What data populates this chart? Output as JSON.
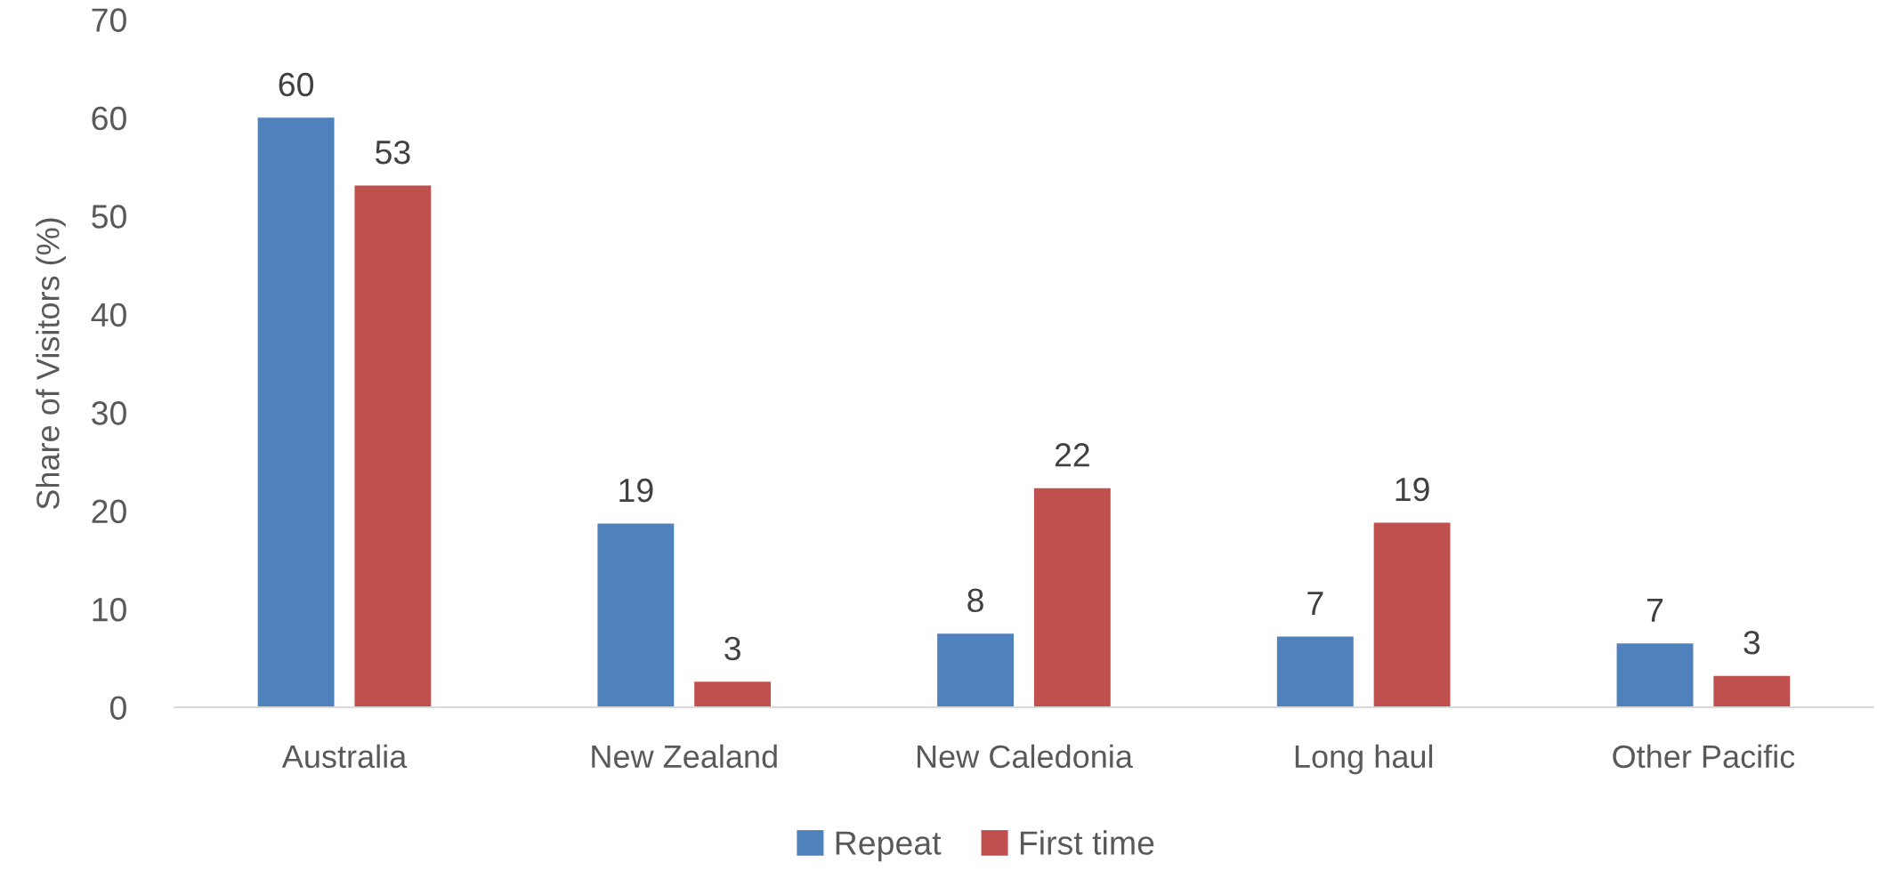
{
  "chart_data": {
    "type": "bar",
    "ylabel": "Share of Visitors (%)",
    "categories": [
      "Australia",
      "New Zealand",
      "New Caledonia",
      "Long haul",
      "Other Pacific"
    ],
    "series": [
      {
        "name": "Repeat",
        "color": "#4f81bd",
        "values": [
          60.0,
          18.7,
          7.5,
          7.2,
          6.5
        ],
        "value_labels": [
          "60",
          "19",
          "8",
          "7",
          "7"
        ]
      },
      {
        "name": "First time",
        "color": "#c0504d",
        "values": [
          53.1,
          2.6,
          22.3,
          18.8,
          3.2
        ],
        "value_labels": [
          "53",
          "3",
          "22",
          "19",
          "3"
        ]
      }
    ],
    "ylim": [
      0,
      70
    ],
    "yticks": [
      0,
      10,
      20,
      30,
      40,
      50,
      60,
      70
    ],
    "grid": false,
    "legend": "bottom"
  }
}
